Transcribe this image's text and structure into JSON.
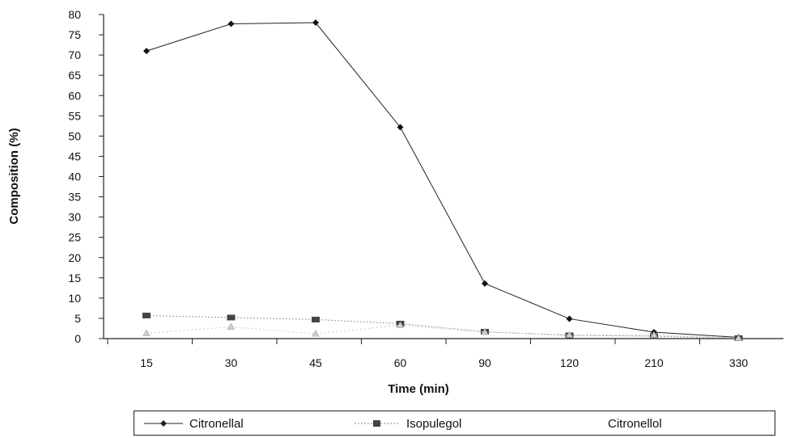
{
  "chart_data": {
    "type": "line",
    "title": "",
    "xlabel": "Time (min)",
    "ylabel": "Composition (%)",
    "categories": [
      "15",
      "30",
      "45",
      "60",
      "90",
      "120",
      "210",
      "330"
    ],
    "ylim": [
      0,
      80
    ],
    "yticks": [
      0,
      5,
      10,
      15,
      20,
      25,
      30,
      35,
      40,
      45,
      50,
      55,
      60,
      65,
      70,
      75,
      80
    ],
    "grid": false,
    "legend_position": "bottom",
    "series": [
      {
        "name": "Citronellal",
        "marker": "diamond",
        "color": "#222222",
        "values": [
          71,
          77.7,
          78,
          52.2,
          13.6,
          4.9,
          1.6,
          0.3
        ]
      },
      {
        "name": "Isopulegol",
        "marker": "square",
        "color": "#777777",
        "values": [
          5.7,
          5.2,
          4.7,
          3.7,
          1.7,
          0.8,
          0.6,
          0.1
        ]
      },
      {
        "name": "Citronellol",
        "marker": "triangle",
        "color": "#bbbbbb",
        "values": [
          1.3,
          2.9,
          1.2,
          3.3,
          1.6,
          0.9,
          0.9,
          0.1
        ]
      }
    ]
  }
}
